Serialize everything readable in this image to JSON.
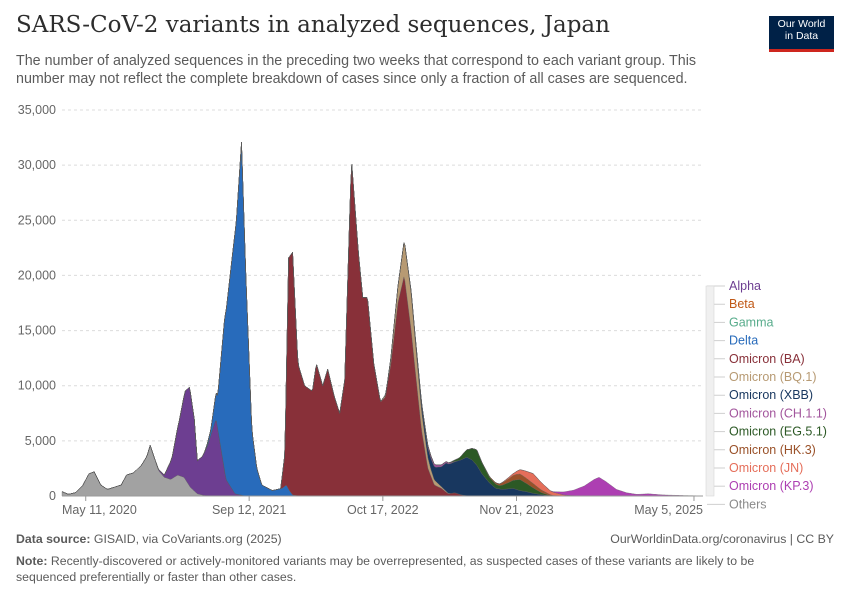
{
  "header": {
    "title": "SARS-CoV-2 variants in analyzed sequences, Japan",
    "subtitle": "The number of analyzed sequences in the preceding two weeks that correspond to each variant group. This number may not reflect the complete breakdown of cases since only a fraction of all cases are sequenced.",
    "logo_line1": "Our World",
    "logo_line2": "in Data"
  },
  "footer": {
    "source_label": "Data source:",
    "source_text": "GISAID, via CoVariants.org (2025)",
    "credit": "OurWorldinData.org/coronavirus | CC BY",
    "note_label": "Note:",
    "note_text": "Recently-discovered or actively-monitored variants may be overrepresented, as suspected cases of these variants are likely to be sequenced preferentially or faster than other cases."
  },
  "chart_data": {
    "type": "area",
    "title": "SARS-CoV-2 variants in analyzed sequences, Japan",
    "xlabel": "",
    "ylabel": "",
    "ylim": [
      0,
      35000
    ],
    "yticks": [
      0,
      5000,
      10000,
      15000,
      20000,
      25000,
      30000,
      35000
    ],
    "ytick_labels": [
      "0",
      "5,000",
      "10,000",
      "15,000",
      "20,000",
      "25,000",
      "30,000",
      "35,000"
    ],
    "xlim": [
      "2020-03-01",
      "2025-06-01"
    ],
    "xticks": [
      {
        "date": "2020-05-11",
        "label": "May 11, 2020"
      },
      {
        "date": "2021-09-12",
        "label": "Sep 12, 2021"
      },
      {
        "date": "2022-10-17",
        "label": "Oct 17, 2022"
      },
      {
        "date": "2023-11-21",
        "label": "Nov 21, 2023"
      },
      {
        "date": "2025-05-05",
        "label": "May 5, 2025"
      }
    ],
    "grid": true,
    "legend_position": "right",
    "series": [
      {
        "name": "Others",
        "color": "#a2a2a2",
        "points": [
          [
            "2020-03-01",
            400
          ],
          [
            "2020-03-20",
            150
          ],
          [
            "2020-04-10",
            300
          ],
          [
            "2020-05-01",
            900
          ],
          [
            "2020-05-20",
            2000
          ],
          [
            "2020-06-05",
            2200
          ],
          [
            "2020-06-25",
            1000
          ],
          [
            "2020-07-15",
            600
          ],
          [
            "2020-08-05",
            800
          ],
          [
            "2020-08-25",
            1000
          ],
          [
            "2020-09-10",
            1900
          ],
          [
            "2020-10-01",
            2100
          ],
          [
            "2020-10-25",
            2800
          ],
          [
            "2020-11-10",
            3600
          ],
          [
            "2020-11-20",
            4600
          ],
          [
            "2020-12-01",
            3600
          ],
          [
            "2020-12-15",
            2300
          ],
          [
            "2021-01-01",
            1700
          ],
          [
            "2021-01-20",
            1500
          ],
          [
            "2021-02-10",
            1900
          ],
          [
            "2021-03-01",
            1700
          ],
          [
            "2021-03-20",
            800
          ],
          [
            "2021-04-10",
            200
          ],
          [
            "2021-05-01",
            50
          ],
          [
            "2021-06-01",
            0
          ],
          [
            "2025-06-01",
            0
          ]
        ]
      },
      {
        "name": "Alpha",
        "color": "#6d3e91",
        "points": [
          [
            "2020-03-01",
            0
          ],
          [
            "2020-12-01",
            0
          ],
          [
            "2021-01-01",
            200
          ],
          [
            "2021-01-25",
            2000
          ],
          [
            "2021-02-15",
            5000
          ],
          [
            "2021-03-05",
            8000
          ],
          [
            "2021-03-18",
            9000
          ],
          [
            "2021-04-01",
            6500
          ],
          [
            "2021-04-10",
            3000
          ],
          [
            "2021-04-25",
            3500
          ],
          [
            "2021-05-10",
            4500
          ],
          [
            "2021-06-05",
            7000
          ],
          [
            "2021-07-05",
            1500
          ],
          [
            "2021-08-01",
            200
          ],
          [
            "2021-09-01",
            0
          ],
          [
            "2025-06-01",
            0
          ]
        ]
      },
      {
        "name": "Beta",
        "color": "#c05917",
        "points": [
          [
            "2020-03-01",
            0
          ],
          [
            "2025-06-01",
            0
          ]
        ]
      },
      {
        "name": "Gamma",
        "color": "#58ac8c",
        "points": [
          [
            "2020-03-01",
            0
          ],
          [
            "2025-06-01",
            0
          ]
        ]
      },
      {
        "name": "Delta",
        "color": "#286bbb",
        "points": [
          [
            "2020-03-01",
            0
          ],
          [
            "2021-05-01",
            0
          ],
          [
            "2021-05-20",
            500
          ],
          [
            "2021-06-10",
            3000
          ],
          [
            "2021-07-01",
            14000
          ],
          [
            "2021-07-20",
            20000
          ],
          [
            "2021-08-05",
            25000
          ],
          [
            "2021-08-20",
            32000
          ],
          [
            "2021-09-02",
            20000
          ],
          [
            "2021-09-20",
            6000
          ],
          [
            "2021-10-05",
            2500
          ],
          [
            "2021-10-20",
            1000
          ],
          [
            "2021-11-20",
            500
          ],
          [
            "2021-12-20",
            700
          ],
          [
            "2022-01-01",
            1000
          ],
          [
            "2022-01-10",
            500
          ],
          [
            "2022-01-20",
            100
          ],
          [
            "2022-02-10",
            0
          ],
          [
            "2025-06-01",
            0
          ]
        ]
      },
      {
        "name": "Omicron (BA)",
        "color": "#883039",
        "points": [
          [
            "2020-03-01",
            0
          ],
          [
            "2021-12-15",
            0
          ],
          [
            "2021-12-28",
            3000
          ],
          [
            "2022-01-08",
            21000
          ],
          [
            "2022-01-20",
            22000
          ],
          [
            "2022-02-05",
            12000
          ],
          [
            "2022-02-25",
            10000
          ],
          [
            "2022-03-20",
            9500
          ],
          [
            "2022-04-01",
            12000
          ],
          [
            "2022-04-20",
            10000
          ],
          [
            "2022-05-05",
            11500
          ],
          [
            "2022-05-25",
            9000
          ],
          [
            "2022-06-10",
            7500
          ],
          [
            "2022-06-25",
            10500
          ],
          [
            "2022-07-15",
            30500
          ],
          [
            "2022-08-05",
            22000
          ],
          [
            "2022-08-18",
            18000
          ],
          [
            "2022-09-01",
            18000
          ],
          [
            "2022-09-20",
            12000
          ],
          [
            "2022-10-10",
            8500
          ],
          [
            "2022-10-25",
            9000
          ],
          [
            "2022-11-10",
            12000
          ],
          [
            "2022-12-01",
            17500
          ],
          [
            "2022-12-20",
            20000
          ],
          [
            "2023-01-10",
            15000
          ],
          [
            "2023-01-20",
            12000
          ],
          [
            "2023-02-10",
            6000
          ],
          [
            "2023-03-01",
            2500
          ],
          [
            "2023-03-20",
            1000
          ],
          [
            "2023-04-10",
            700
          ],
          [
            "2023-05-01",
            200
          ],
          [
            "2023-05-20",
            300
          ],
          [
            "2023-06-10",
            100
          ],
          [
            "2023-07-01",
            0
          ],
          [
            "2025-06-01",
            0
          ]
        ]
      },
      {
        "name": "Omicron (BQ.1)",
        "color": "#b79a73",
        "points": [
          [
            "2020-03-01",
            0
          ],
          [
            "2022-10-01",
            0
          ],
          [
            "2022-11-01",
            200
          ],
          [
            "2022-12-01",
            1500
          ],
          [
            "2022-12-20",
            3200
          ],
          [
            "2023-01-10",
            3300
          ],
          [
            "2023-01-25",
            2500
          ],
          [
            "2023-02-15",
            1500
          ],
          [
            "2023-03-10",
            600
          ],
          [
            "2023-04-10",
            150
          ],
          [
            "2023-05-10",
            0
          ],
          [
            "2025-06-01",
            0
          ]
        ]
      },
      {
        "name": "Omicron (XBB)",
        "color": "#18375f",
        "points": [
          [
            "2020-03-01",
            0
          ],
          [
            "2022-12-20",
            0
          ],
          [
            "2023-01-20",
            300
          ],
          [
            "2023-02-20",
            700
          ],
          [
            "2023-03-10",
            1000
          ],
          [
            "2023-03-25",
            1300
          ],
          [
            "2023-04-10",
            1800
          ],
          [
            "2023-04-25",
            2600
          ],
          [
            "2023-05-20",
            2800
          ],
          [
            "2023-06-10",
            3200
          ],
          [
            "2023-06-25",
            3500
          ],
          [
            "2023-07-10",
            3300
          ],
          [
            "2023-07-25",
            2800
          ],
          [
            "2023-08-10",
            2000
          ],
          [
            "2023-09-01",
            1200
          ],
          [
            "2023-09-20",
            700
          ],
          [
            "2023-10-10",
            600
          ],
          [
            "2023-11-10",
            700
          ],
          [
            "2023-12-01",
            500
          ],
          [
            "2023-12-20",
            400
          ],
          [
            "2024-01-10",
            250
          ],
          [
            "2024-02-10",
            100
          ],
          [
            "2024-03-10",
            0
          ],
          [
            "2025-06-01",
            0
          ]
        ]
      },
      {
        "name": "Omicron (CH.1.1)",
        "color": "#a2559c",
        "points": [
          [
            "2020-03-01",
            0
          ],
          [
            "2023-01-01",
            0
          ],
          [
            "2023-02-01",
            150
          ],
          [
            "2023-03-01",
            250
          ],
          [
            "2023-04-01",
            200
          ],
          [
            "2023-05-01",
            100
          ],
          [
            "2023-06-01",
            0
          ],
          [
            "2025-06-01",
            0
          ]
        ]
      },
      {
        "name": "Omicron (EG.5.1)",
        "color": "#2c5925",
        "points": [
          [
            "2020-03-01",
            0
          ],
          [
            "2023-05-01",
            0
          ],
          [
            "2023-06-01",
            200
          ],
          [
            "2023-07-01",
            800
          ],
          [
            "2023-07-25",
            1400
          ],
          [
            "2023-08-10",
            1000
          ],
          [
            "2023-09-01",
            500
          ],
          [
            "2023-10-01",
            300
          ],
          [
            "2023-11-01",
            600
          ],
          [
            "2023-12-01",
            1000
          ],
          [
            "2024-01-01",
            600
          ],
          [
            "2024-02-01",
            200
          ],
          [
            "2024-03-01",
            0
          ],
          [
            "2025-06-01",
            0
          ]
        ]
      },
      {
        "name": "Omicron (HK.3)",
        "color": "#9a5129",
        "points": [
          [
            "2020-03-01",
            0
          ],
          [
            "2023-08-01",
            0
          ],
          [
            "2023-10-01",
            150
          ],
          [
            "2023-11-20",
            500
          ],
          [
            "2023-12-10",
            500
          ],
          [
            "2024-01-10",
            400
          ],
          [
            "2024-02-10",
            200
          ],
          [
            "2024-03-10",
            50
          ],
          [
            "2024-04-10",
            0
          ],
          [
            "2025-06-01",
            0
          ]
        ]
      },
      {
        "name": "Omicron (JN)",
        "color": "#e56e5a",
        "points": [
          [
            "2020-03-01",
            0
          ],
          [
            "2023-10-01",
            0
          ],
          [
            "2023-11-15",
            200
          ],
          [
            "2023-12-10",
            500
          ],
          [
            "2024-01-10",
            900
          ],
          [
            "2024-02-01",
            700
          ],
          [
            "2024-03-01",
            350
          ],
          [
            "2024-04-10",
            100
          ],
          [
            "2024-05-10",
            30
          ],
          [
            "2024-06-10",
            0
          ],
          [
            "2025-06-01",
            0
          ]
        ]
      },
      {
        "name": "Omicron (KP.3)",
        "color": "#ad3fb2",
        "points": [
          [
            "2020-03-01",
            0
          ],
          [
            "2024-03-01",
            0
          ],
          [
            "2024-04-01",
            200
          ],
          [
            "2024-05-10",
            500
          ],
          [
            "2024-06-10",
            900
          ],
          [
            "2024-07-10",
            1500
          ],
          [
            "2024-07-25",
            1700
          ],
          [
            "2024-08-15",
            1300
          ],
          [
            "2024-09-15",
            600
          ],
          [
            "2024-10-15",
            300
          ],
          [
            "2024-11-15",
            150
          ],
          [
            "2024-12-20",
            200
          ],
          [
            "2025-02-01",
            100
          ],
          [
            "2025-04-01",
            50
          ],
          [
            "2025-05-05",
            30
          ],
          [
            "2025-06-01",
            0
          ]
        ]
      }
    ]
  }
}
